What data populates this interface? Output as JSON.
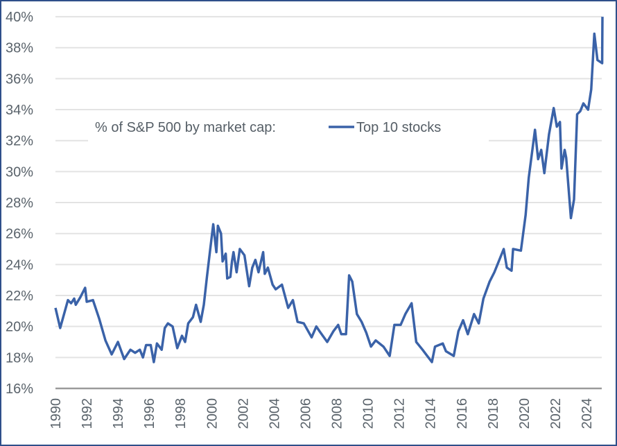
{
  "chart_data": {
    "type": "line",
    "title": "",
    "xlabel": "",
    "ylabel": "",
    "xlim": [
      1990,
      2025
    ],
    "ylim": [
      16,
      40
    ],
    "grid": "horizontal",
    "legend_placement": "top-left",
    "legend_title": "% of S&P 500 by market cap:",
    "y_ticks": [
      "16%",
      "18%",
      "20%",
      "22%",
      "24%",
      "26%",
      "28%",
      "30%",
      "32%",
      "34%",
      "36%",
      "38%",
      "40%"
    ],
    "y_tick_values": [
      16,
      18,
      20,
      22,
      24,
      26,
      28,
      30,
      32,
      34,
      36,
      38,
      40
    ],
    "x_ticks": [
      "1990",
      "1992",
      "1994",
      "1996",
      "1998",
      "2000",
      "2002",
      "2004",
      "2006",
      "2008",
      "2010",
      "2012",
      "2014",
      "2016",
      "2018",
      "2020",
      "2022",
      "2024"
    ],
    "x_tick_values": [
      1990,
      1992,
      1994,
      1996,
      1998,
      2000,
      2002,
      2004,
      2006,
      2008,
      2010,
      2012,
      2014,
      2016,
      2018,
      2020,
      2022,
      2024
    ],
    "series": [
      {
        "name": "Top 10 stocks",
        "color": "#3a62a8",
        "x": [
          1990.0,
          1990.3,
          1990.8,
          1991.0,
          1991.2,
          1991.3,
          1991.6,
          1991.9,
          1992.0,
          1992.4,
          1992.8,
          1993.2,
          1993.6,
          1994.0,
          1994.4,
          1994.8,
          1995.1,
          1995.4,
          1995.6,
          1995.8,
          1996.1,
          1996.3,
          1996.5,
          1996.8,
          1997.0,
          1997.2,
          1997.5,
          1997.8,
          1998.1,
          1998.3,
          1998.5,
          1998.8,
          1999.0,
          1999.3,
          1999.5,
          1999.7,
          1999.9,
          2000.1,
          2000.3,
          2000.4,
          2000.6,
          2000.7,
          2000.9,
          2001.0,
          2001.2,
          2001.3,
          2001.4,
          2001.6,
          2001.8,
          2002.1,
          2002.4,
          2002.6,
          2002.8,
          2003.0,
          2003.3,
          2003.4,
          2003.6,
          2003.9,
          2004.1,
          2004.5,
          2004.9,
          2005.2,
          2005.5,
          2005.9,
          2006.4,
          2006.7,
          2006.9,
          2007.4,
          2007.8,
          2008.1,
          2008.3,
          2008.6,
          2008.8,
          2009.0,
          2009.3,
          2009.6,
          2009.9,
          2010.2,
          2010.5,
          2011.0,
          2011.4,
          2011.7,
          2012.1,
          2012.4,
          2012.8,
          2013.1,
          2013.5,
          2013.8,
          2014.1,
          2014.3,
          2014.8,
          2015.0,
          2015.5,
          2015.8,
          2016.1,
          2016.4,
          2016.8,
          2017.1,
          2017.4,
          2017.8,
          2018.1,
          2018.7,
          2018.9,
          2019.2,
          2019.3,
          2019.8,
          2020.1,
          2020.3,
          2020.7,
          2020.9,
          2021.1,
          2021.3,
          2021.6,
          2021.9,
          2022.1,
          2022.3,
          2022.4,
          2022.6,
          2022.7,
          2023.0,
          2023.2,
          2023.4,
          2023.6,
          2023.8,
          2024.1,
          2024.3,
          2024.5,
          2024.7,
          2025.0,
          2025.02
        ],
        "values": [
          21.2,
          19.9,
          21.7,
          21.5,
          21.8,
          21.4,
          21.9,
          22.5,
          21.6,
          21.7,
          20.5,
          19.1,
          18.2,
          19.0,
          17.9,
          18.5,
          18.3,
          18.5,
          18.0,
          18.8,
          18.8,
          17.7,
          18.9,
          18.5,
          19.9,
          20.2,
          20.0,
          18.6,
          19.4,
          19.0,
          20.2,
          20.6,
          21.4,
          20.3,
          21.4,
          23.2,
          24.9,
          26.6,
          24.8,
          26.5,
          26.0,
          24.2,
          24.7,
          23.1,
          23.2,
          24.2,
          24.8,
          23.5,
          25.0,
          24.6,
          22.6,
          23.8,
          24.3,
          23.5,
          24.8,
          23.4,
          23.8,
          22.7,
          22.4,
          22.7,
          21.2,
          21.7,
          20.3,
          20.2,
          19.3,
          20.0,
          19.7,
          19.0,
          19.7,
          20.1,
          19.5,
          19.5,
          23.3,
          22.9,
          20.8,
          20.3,
          19.6,
          18.7,
          19.1,
          18.7,
          18.1,
          20.1,
          20.1,
          20.8,
          21.5,
          19.0,
          18.5,
          18.1,
          17.7,
          18.7,
          18.9,
          18.4,
          18.1,
          19.7,
          20.4,
          19.5,
          20.8,
          20.2,
          21.8,
          22.9,
          23.5,
          25.0,
          23.8,
          23.6,
          25.0,
          24.9,
          27.2,
          29.6,
          32.7,
          30.8,
          31.4,
          29.9,
          32.4,
          34.1,
          32.9,
          33.2,
          30.2,
          31.4,
          30.9,
          27.0,
          28.2,
          33.7,
          33.9,
          34.4,
          34.0,
          35.3,
          38.9,
          37.2,
          37.0,
          40.0
        ]
      }
    ]
  }
}
